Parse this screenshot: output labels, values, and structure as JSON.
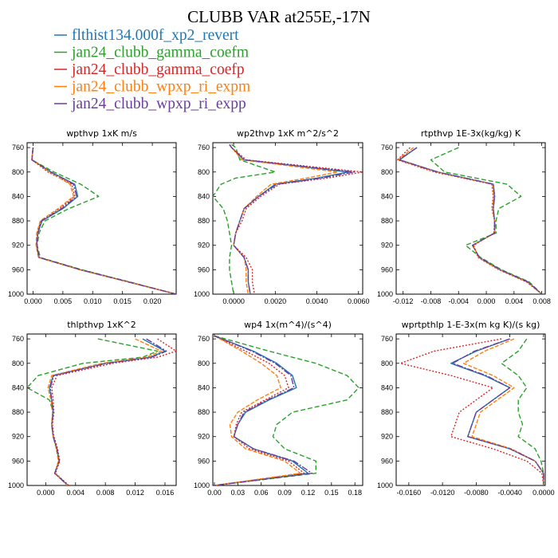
{
  "title": "CLUBB VAR at255E,-17N",
  "series_styles": [
    {
      "name": "flthist134.000f_xp2_revert",
      "color": "#1f77b4",
      "dash": ""
    },
    {
      "name": "jan24_clubb_gamma_coefm",
      "color": "#2ca02c",
      "dash": "6,3"
    },
    {
      "name": "jan24_clubb_gamma_coefp",
      "color": "#d62728",
      "dash": "2,2"
    },
    {
      "name": "jan24_clubb_wpxp_ri_expm",
      "color": "#ff7f0e",
      "dash": "5,2"
    },
    {
      "name": "jan24_clubb_wpxp_ri_expp",
      "color": "#6a3d9a",
      "dash": "8,2,2,2"
    }
  ],
  "chart_data": [
    {
      "type": "line",
      "title": "wpthvp  1xK m/s",
      "levels": [
        760,
        780,
        800,
        820,
        840,
        860,
        880,
        900,
        920,
        940,
        960,
        980,
        1000
      ],
      "xlim": [
        -0.001,
        0.024
      ],
      "xticks": [
        "0.000",
        "0.005",
        "0.010",
        "0.015",
        "0.020"
      ],
      "xtick_values": [
        0,
        0.005,
        0.01,
        0.015,
        0.02
      ],
      "ylim": [
        1000,
        752
      ],
      "yticks": [
        760,
        800,
        840,
        880,
        920,
        960,
        1000
      ],
      "series": [
        {
          "values": [
            0.0,
            -0.0002,
            0.003,
            0.007,
            0.0075,
            0.005,
            0.0015,
            0.0008,
            0.0006,
            0.001,
            0.008,
            0.016,
            0.024
          ]
        },
        {
          "values": [
            0.0,
            -0.0002,
            0.0035,
            0.008,
            0.011,
            0.006,
            0.002,
            0.001,
            0.0007,
            0.0012,
            0.0082,
            0.0162,
            0.024
          ]
        },
        {
          "values": [
            0.0,
            -0.0002,
            0.0025,
            0.0065,
            0.007,
            0.0045,
            0.0013,
            0.0007,
            0.0006,
            0.001,
            0.0079,
            0.016,
            0.024
          ]
        },
        {
          "values": [
            0.0,
            -0.0002,
            0.0028,
            0.0062,
            0.0068,
            0.0042,
            0.0012,
            0.0006,
            0.0005,
            0.0009,
            0.0078,
            0.0159,
            0.024
          ]
        },
        {
          "values": [
            0.0,
            -0.0002,
            0.003,
            0.0068,
            0.0073,
            0.0048,
            0.0014,
            0.0008,
            0.0006,
            0.001,
            0.008,
            0.016,
            0.024
          ]
        }
      ]
    },
    {
      "type": "line",
      "title": "wp2thvp  1xK m^2/s^2",
      "levels": [
        755,
        760,
        780,
        800,
        810,
        820,
        840,
        860,
        880,
        900,
        920,
        940,
        960,
        980,
        1000
      ],
      "xlim": [
        -0.001,
        0.0062
      ],
      "xticks": [
        "0.0000",
        "0.0020",
        "0.0040",
        "0.0060"
      ],
      "xtick_values": [
        0,
        0.002,
        0.004,
        0.006
      ],
      "ylim": [
        1000,
        752
      ],
      "yticks": [
        760,
        800,
        840,
        880,
        920,
        960,
        1000
      ],
      "series": [
        {
          "values": [
            -0.0002,
            -0.0001,
            0.0005,
            0.0055,
            0.004,
            0.002,
            0.0012,
            0.0005,
            0.0003,
            0.0001,
            0.0,
            0.0005,
            0.0007,
            0.0007,
            0.0008
          ]
        },
        {
          "values": [
            -0.0001,
            0.0001,
            0.0003,
            0.002,
            0.0001,
            -0.0006,
            -0.001,
            -0.0005,
            -0.0003,
            -0.0002,
            -0.0001,
            -0.0002,
            -0.0002,
            -0.0001,
            0.0
          ]
        },
        {
          "values": [
            -0.0002,
            -0.0001,
            0.0006,
            0.0062,
            0.0045,
            0.0022,
            0.0013,
            0.0006,
            0.0004,
            0.0001,
            0.0,
            0.0006,
            0.0009,
            0.0009,
            0.001
          ]
        },
        {
          "values": [
            -0.0002,
            -0.0001,
            0.0004,
            0.005,
            0.0035,
            0.0018,
            0.0011,
            0.0005,
            0.0003,
            0.0001,
            0.0,
            0.0005,
            0.0006,
            0.0006,
            0.0007
          ]
        },
        {
          "values": [
            -0.0002,
            -0.0001,
            0.0005,
            0.0058,
            0.0042,
            0.0021,
            0.0012,
            0.0005,
            0.0003,
            0.0001,
            0.0,
            0.0005,
            0.0007,
            0.0007,
            0.0008
          ]
        }
      ]
    },
    {
      "type": "line",
      "title": "rtpthvp  1E-3x(kg/kg) K",
      "levels": [
        760,
        780,
        800,
        820,
        840,
        860,
        880,
        900,
        920,
        940,
        960,
        980,
        1000
      ],
      "xlim": [
        -0.013,
        0.0085
      ],
      "xticks": [
        "-0.012",
        "-0.008",
        "-0.004",
        "0.000",
        "0.004",
        "0.008"
      ],
      "xtick_values": [
        -0.012,
        -0.008,
        -0.004,
        0,
        0.004,
        0.008
      ],
      "ylim": [
        1000,
        752
      ],
      "yticks": [
        760,
        800,
        840,
        880,
        920,
        960,
        1000
      ],
      "series": [
        {
          "values": [
            -0.01,
            -0.0125,
            -0.007,
            0.001,
            0.0012,
            0.001,
            0.0012,
            0.0012,
            -0.002,
            -0.001,
            0.002,
            0.006,
            0.008
          ]
        },
        {
          "values": [
            -0.004,
            -0.008,
            -0.006,
            0.003,
            0.005,
            0.0018,
            0.0014,
            0.0014,
            -0.003,
            -0.0008,
            0.0022,
            0.0062,
            0.008
          ]
        },
        {
          "values": [
            -0.011,
            -0.0128,
            -0.0075,
            0.0008,
            0.001,
            0.0008,
            0.0012,
            0.0011,
            -0.0018,
            -0.0012,
            0.0018,
            0.0058,
            0.008
          ]
        },
        {
          "values": [
            -0.0105,
            -0.0127,
            -0.0072,
            0.0009,
            0.0011,
            0.0009,
            0.0012,
            0.0012,
            -0.0019,
            -0.0011,
            0.0019,
            0.0059,
            0.008
          ]
        },
        {
          "values": [
            -0.01,
            -0.0126,
            -0.007,
            0.001,
            0.0012,
            0.001,
            0.0012,
            0.0012,
            -0.002,
            -0.001,
            0.002,
            0.006,
            0.008
          ]
        }
      ]
    },
    {
      "type": "line",
      "title": "thlpthvp  1xK^2",
      "levels": [
        760,
        780,
        790,
        800,
        820,
        840,
        860,
        880,
        900,
        920,
        940,
        960,
        980,
        1000
      ],
      "xlim": [
        -0.0025,
        0.0175
      ],
      "xticks": [
        "0.000",
        "0.004",
        "0.008",
        "0.012",
        "0.016"
      ],
      "xtick_values": [
        0,
        0.004,
        0.008,
        0.012,
        0.016
      ],
      "ylim": [
        1000,
        752
      ],
      "yticks": [
        760,
        800,
        840,
        880,
        920,
        960,
        1000
      ],
      "series": [
        {
          "values": [
            0.013,
            0.016,
            0.014,
            0.008,
            0.001,
            0.0005,
            0.0008,
            0.001,
            0.0008,
            0.001,
            0.0015,
            0.0018,
            0.0012,
            0.003
          ]
        },
        {
          "values": [
            0.007,
            0.015,
            0.013,
            0.005,
            -0.001,
            -0.0025,
            0.0005,
            0.001,
            0.0008,
            0.001,
            0.0015,
            0.0018,
            0.0012,
            0.003
          ]
        },
        {
          "values": [
            0.015,
            0.0175,
            0.015,
            0.009,
            0.0015,
            0.0008,
            0.001,
            0.0011,
            0.0009,
            0.0011,
            0.0016,
            0.0019,
            0.0013,
            0.0031
          ]
        },
        {
          "values": [
            0.012,
            0.0155,
            0.0135,
            0.0075,
            0.0008,
            0.0003,
            0.0007,
            0.0009,
            0.0008,
            0.001,
            0.0014,
            0.0017,
            0.0012,
            0.0029
          ]
        },
        {
          "values": [
            0.0135,
            0.0162,
            0.0142,
            0.0082,
            0.0011,
            0.0006,
            0.0008,
            0.001,
            0.0008,
            0.001,
            0.0015,
            0.0018,
            0.0012,
            0.003
          ]
        }
      ]
    },
    {
      "type": "line",
      "title": "wp4  1x(m^4)/(s^4)",
      "levels": [
        755,
        780,
        800,
        820,
        840,
        860,
        880,
        900,
        920,
        940,
        960,
        980,
        1000
      ],
      "xlim": [
        -0.002,
        0.19
      ],
      "xticks": [
        "0.00",
        "0.03",
        "0.06",
        "0.09",
        "0.12",
        "0.15",
        "0.18"
      ],
      "xtick_values": [
        0,
        0.03,
        0.06,
        0.09,
        0.12,
        0.15,
        0.18
      ],
      "ylim": [
        1000,
        752
      ],
      "yticks": [
        760,
        800,
        840,
        880,
        920,
        960,
        1000
      ],
      "series": [
        {
          "values": [
            0.0,
            0.05,
            0.08,
            0.1,
            0.105,
            0.07,
            0.04,
            0.03,
            0.025,
            0.05,
            0.1,
            0.12,
            0.0
          ]
        },
        {
          "values": [
            0.0,
            0.07,
            0.13,
            0.17,
            0.185,
            0.17,
            0.1,
            0.08,
            0.075,
            0.09,
            0.13,
            0.13,
            0.0
          ]
        },
        {
          "values": [
            0.0,
            0.04,
            0.07,
            0.09,
            0.095,
            0.065,
            0.035,
            0.028,
            0.025,
            0.045,
            0.095,
            0.115,
            0.0
          ]
        },
        {
          "values": [
            0.0,
            0.035,
            0.06,
            0.08,
            0.085,
            0.055,
            0.03,
            0.02,
            0.022,
            0.04,
            0.09,
            0.11,
            0.0
          ]
        },
        {
          "values": [
            0.0,
            0.048,
            0.078,
            0.098,
            0.102,
            0.068,
            0.038,
            0.03,
            0.025,
            0.05,
            0.102,
            0.125,
            0.0
          ]
        }
      ]
    },
    {
      "type": "line",
      "title": "wprtpthlp  1-E-3x(m kg K)/(s kg)",
      "levels": [
        760,
        780,
        800,
        820,
        840,
        860,
        880,
        900,
        920,
        940,
        960,
        980,
        1000
      ],
      "xlim": [
        -0.0175,
        0.0002
      ],
      "xticks": [
        "-0.0160",
        "-0.0120",
        "-0.0080",
        "-0.0040",
        "0.0000"
      ],
      "xtick_values": [
        -0.016,
        -0.012,
        -0.008,
        -0.004,
        0
      ],
      "ylim": [
        1000,
        752
      ],
      "yticks": [
        760,
        800,
        840,
        880,
        920,
        960,
        1000
      ],
      "series": [
        {
          "values": [
            -0.004,
            -0.008,
            -0.011,
            -0.007,
            -0.004,
            -0.006,
            -0.008,
            -0.0085,
            -0.009,
            -0.004,
            -0.001,
            0.0,
            0.0
          ]
        },
        {
          "values": [
            -0.002,
            -0.003,
            -0.005,
            -0.003,
            -0.002,
            -0.003,
            -0.003,
            -0.0025,
            -0.003,
            -0.001,
            -0.0003,
            0.0,
            0.0
          ]
        },
        {
          "values": [
            -0.005,
            -0.013,
            -0.017,
            -0.011,
            -0.006,
            -0.008,
            -0.01,
            -0.0105,
            -0.011,
            -0.006,
            -0.002,
            -0.0002,
            0.0
          ]
        },
        {
          "values": [
            -0.0035,
            -0.007,
            -0.0095,
            -0.006,
            -0.0035,
            -0.0055,
            -0.0075,
            -0.008,
            -0.0085,
            -0.0038,
            -0.001,
            0.0,
            0.0
          ]
        },
        {
          "values": [
            -0.004,
            -0.0082,
            -0.0108,
            -0.0068,
            -0.004,
            -0.006,
            -0.008,
            -0.0085,
            -0.009,
            -0.004,
            -0.001,
            0.0,
            0.0
          ]
        }
      ]
    }
  ]
}
